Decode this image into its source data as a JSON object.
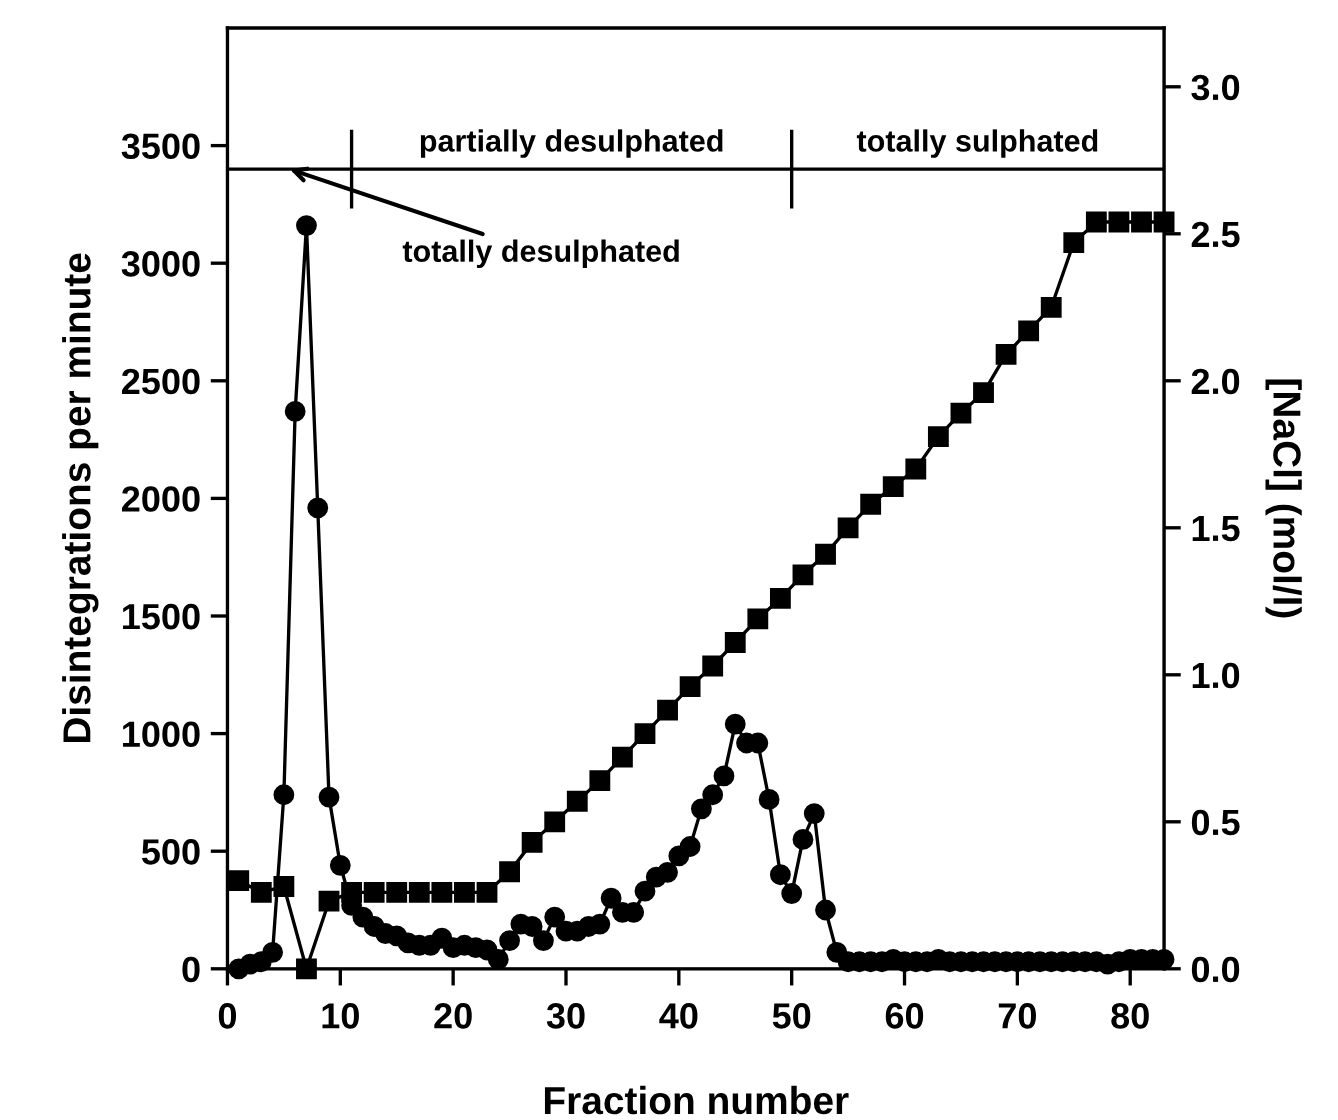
{
  "chart_data": {
    "type": "line",
    "xlabel": "Fraction number",
    "ylabel": "Disintegrations per minute",
    "y2label": "[NaCl] (mol/l)",
    "xlim": [
      0,
      83
    ],
    "xticks": [
      0,
      10,
      20,
      30,
      40,
      50,
      60,
      70,
      80
    ],
    "ylim": [
      0,
      4000
    ],
    "yticks": [
      0,
      500,
      1000,
      1500,
      2000,
      2500,
      3000,
      3500
    ],
    "y2lim": [
      0,
      3.2
    ],
    "y2ticks": [
      {
        "value": 0,
        "label": "0.0"
      },
      0.5,
      {
        "value": 1,
        "label": "1.0"
      },
      1.5,
      {
        "value": 2,
        "label": "2.0"
      },
      2.5,
      {
        "value": 3,
        "label": "3.0"
      }
    ],
    "grid": false,
    "legend": false,
    "series": [
      {
        "color": "#000000",
        "marker": "circle",
        "x": [
          1,
          2,
          3,
          4,
          5,
          6,
          7,
          8,
          9,
          10,
          11,
          12,
          13,
          14,
          15,
          16,
          17,
          18,
          19,
          20,
          21,
          22,
          23,
          24,
          25,
          26,
          27,
          28,
          29,
          30,
          31,
          32,
          33,
          34,
          35,
          36,
          37,
          38,
          39,
          40,
          41,
          42,
          43,
          44,
          45,
          46,
          47,
          48,
          49,
          50,
          51,
          52,
          53,
          54,
          55,
          56,
          57,
          58,
          59,
          60,
          61,
          62,
          63,
          64,
          65,
          66,
          67,
          68,
          69,
          70,
          71,
          72,
          73,
          74,
          75,
          76,
          77,
          78,
          79,
          80,
          81,
          82,
          83
        ],
        "values": [
          0,
          20,
          30,
          70,
          740,
          2370,
          3160,
          1960,
          730,
          440,
          270,
          220,
          180,
          150,
          140,
          110,
          100,
          100,
          130,
          90,
          100,
          90,
          80,
          40,
          120,
          190,
          180,
          120,
          220,
          160,
          160,
          180,
          190,
          300,
          240,
          240,
          330,
          390,
          410,
          480,
          520,
          680,
          740,
          820,
          1040,
          960,
          960,
          720,
          400,
          320,
          550,
          660,
          250,
          70,
          30,
          30,
          30,
          30,
          40,
          30,
          30,
          30,
          40,
          30,
          30,
          30,
          30,
          30,
          30,
          30,
          30,
          30,
          30,
          30,
          30,
          30,
          30,
          20,
          30,
          40,
          40,
          40,
          40
        ]
      },
      {
        "color": "#000000",
        "marker": "square",
        "axis": "y2",
        "x": [
          1,
          3,
          5,
          7,
          9,
          11,
          13,
          15,
          17,
          19,
          21,
          23,
          25,
          27,
          29,
          31,
          33,
          35,
          37,
          39,
          41,
          43,
          45,
          47,
          49,
          51,
          53,
          55,
          57,
          59,
          61,
          63,
          65,
          67,
          69,
          71,
          73,
          75,
          77,
          79,
          81,
          83
        ],
        "values": [
          0.3,
          0.26,
          0.28,
          0.0,
          0.23,
          0.26,
          0.26,
          0.26,
          0.26,
          0.26,
          0.26,
          0.26,
          0.33,
          0.43,
          0.5,
          0.57,
          0.64,
          0.72,
          0.8,
          0.88,
          0.96,
          1.03,
          1.11,
          1.19,
          1.26,
          1.34,
          1.41,
          1.5,
          1.58,
          1.64,
          1.7,
          1.81,
          1.89,
          1.96,
          2.09,
          2.17,
          2.25,
          2.47,
          2.54,
          2.54,
          2.54,
          2.54
        ]
      }
    ],
    "ref_lines": [
      {
        "axis": "y",
        "value": 3400
      }
    ],
    "annotations": [
      {
        "text": "totally desulphated",
        "x": 5.5,
        "y": 3400
      },
      {
        "text": "partially desulphated",
        "x": 11,
        "y": 3400
      },
      {
        "text": "totally sulphated",
        "x": 50,
        "y": 3400
      }
    ]
  }
}
